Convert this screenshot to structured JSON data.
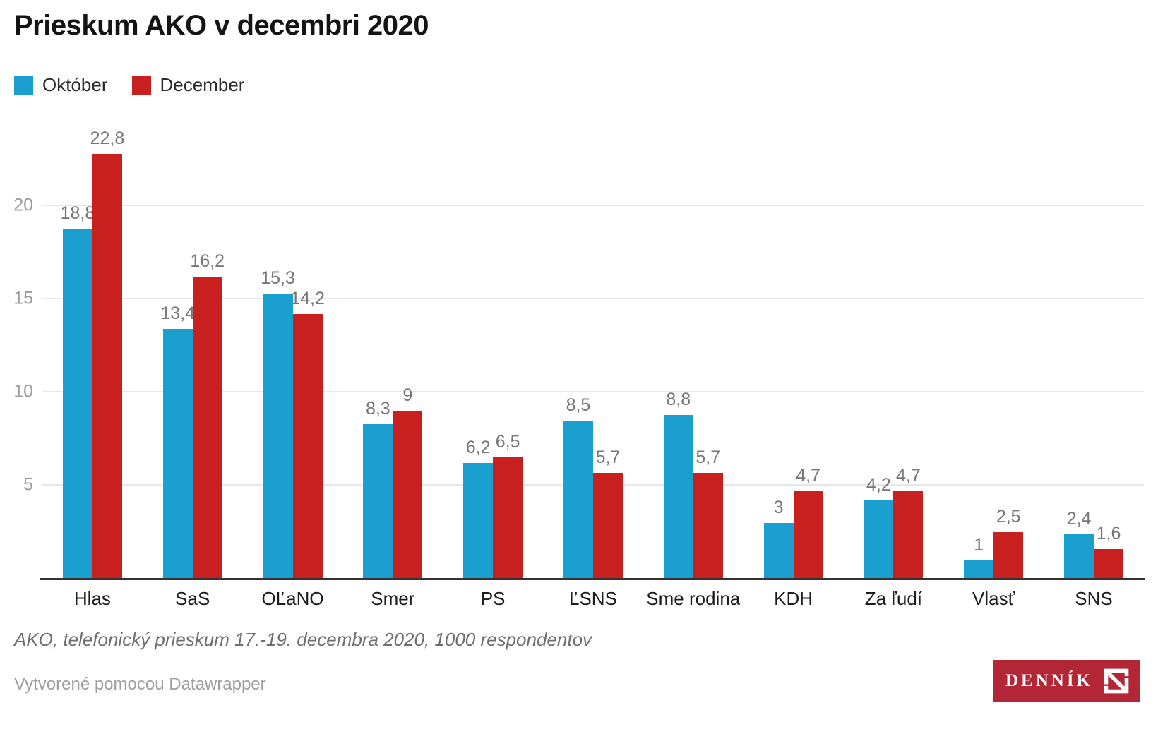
{
  "title": "Prieskum AKO v decembri 2020",
  "legend": [
    {
      "label": "Október",
      "color": "#1b9fce"
    },
    {
      "label": "December",
      "color": "#c8201f"
    }
  ],
  "chart_data": {
    "type": "bar",
    "title": "Prieskum AKO v decembri 2020",
    "categories": [
      "Hlas",
      "SaS",
      "OĽaNO",
      "Smer",
      "PS",
      "ĽSNS",
      "Sme rodina",
      "KDH",
      "Za ľudí",
      "Vlasť",
      "SNS"
    ],
    "series": [
      {
        "name": "Október",
        "color": "#1b9fce",
        "values": [
          18.8,
          13.4,
          15.3,
          8.3,
          6.2,
          8.5,
          8.8,
          3,
          4.2,
          1,
          2.4
        ],
        "labels": [
          "18,8",
          "13,4",
          "15,3",
          "8,3",
          "6,2",
          "8,5",
          "8,8",
          "3",
          "4,2",
          "1",
          "2,4"
        ]
      },
      {
        "name": "December",
        "color": "#c8201f",
        "values": [
          22.8,
          16.2,
          14.2,
          9,
          6.5,
          5.7,
          5.7,
          4.7,
          4.7,
          2.5,
          1.6
        ],
        "labels": [
          "22,8",
          "16,2",
          "14,2",
          "9",
          "6,5",
          "5,7",
          "5,7",
          "4,7",
          "4,7",
          "2,5",
          "1,6"
        ]
      }
    ],
    "xlabel": "",
    "ylabel": "",
    "yticks": [
      5,
      10,
      15,
      20
    ],
    "ylim": [
      0,
      25
    ],
    "grid": "horizontal",
    "legend_position": "top-left"
  },
  "footer": {
    "source": "AKO, telefonický prieskum 17.-19. decembra 2020, 1000 respondentov",
    "credit": "Vytvorené pomocou Datawrapper"
  },
  "logo": {
    "text": "DENNÍK",
    "icon": "dennik-n-icon",
    "bg": "#b32636"
  }
}
